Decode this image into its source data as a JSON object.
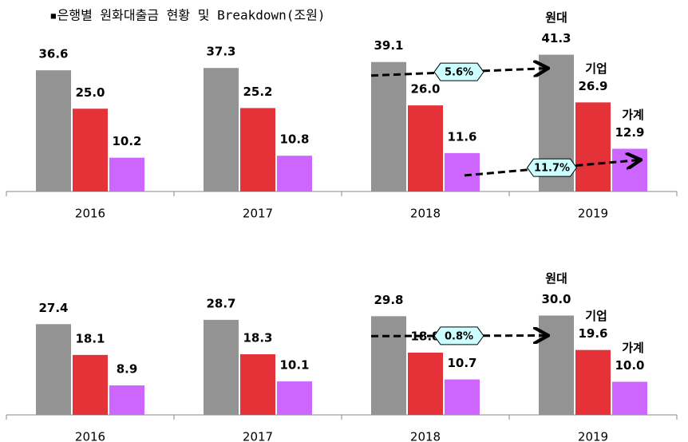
{
  "chart_data": [
    {
      "type": "bar",
      "title": "▪은행별 원화대출금 현황 및 Breakdown(조원)",
      "categories": [
        "2016",
        "2017",
        "2018",
        "2019"
      ],
      "series": [
        {
          "name": "원대",
          "color": "#939393",
          "values": [
            36.6,
            37.3,
            39.1,
            41.3
          ],
          "value_labels": [
            "36.6",
            "37.3",
            "39.1",
            "41.3"
          ]
        },
        {
          "name": "기업",
          "color": "#e53238",
          "values": [
            25,
            25.2,
            26,
            26.9
          ],
          "value_labels": [
            "25.0",
            "25.2",
            "26.0",
            "26.9"
          ]
        },
        {
          "name": "가계",
          "color": "#cc66ff",
          "values": [
            10.2,
            10.8,
            11.6,
            12.9
          ],
          "value_labels": [
            "10.2",
            "10.8",
            "11.6",
            "12.9"
          ]
        }
      ],
      "annotations": [
        "5.6%",
        "11.7%"
      ]
    },
    {
      "type": "bar",
      "categories": [
        "2016",
        "2017",
        "2018",
        "2019"
      ],
      "series": [
        {
          "name": "원대",
          "color": "#939393",
          "values": [
            27.4,
            28.7,
            29.8,
            30
          ],
          "value_labels": [
            "27.4",
            "28.7",
            "29.8",
            "30.0"
          ]
        },
        {
          "name": "기업",
          "color": "#e53238",
          "values": [
            18.1,
            18.3,
            18.8,
            19.6
          ],
          "value_labels": [
            "18.1",
            "18.3",
            "18.8",
            "19.6"
          ]
        },
        {
          "name": "가계",
          "color": "#cc66ff",
          "values": [
            8.9,
            10.1,
            10.7,
            10
          ],
          "value_labels": [
            "8.9",
            "10.1",
            "10.7",
            "10.0"
          ]
        }
      ],
      "annotations": [
        "0.8%"
      ]
    }
  ]
}
